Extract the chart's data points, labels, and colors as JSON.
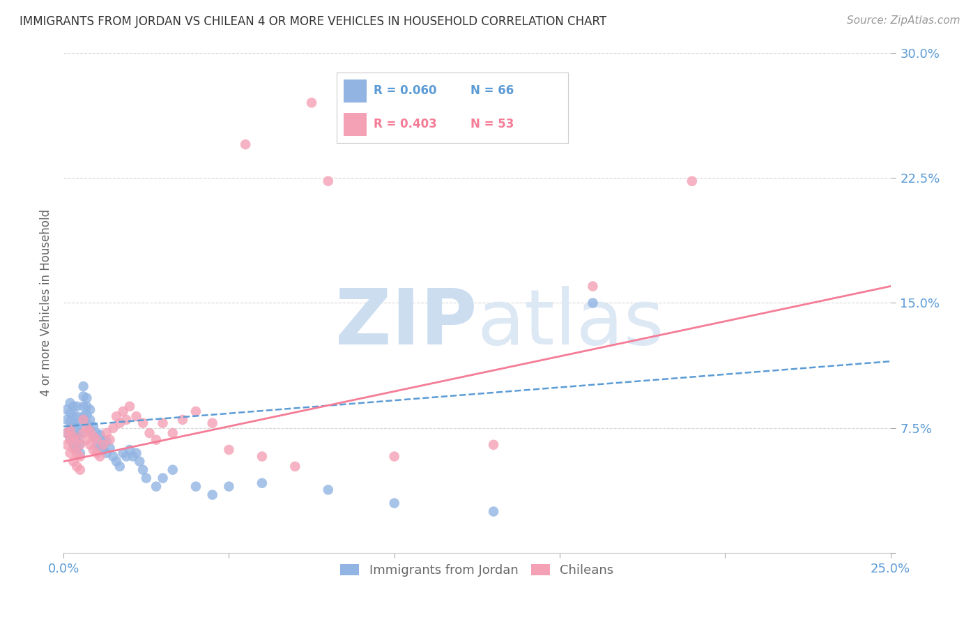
{
  "title": "IMMIGRANTS FROM JORDAN VS CHILEAN 4 OR MORE VEHICLES IN HOUSEHOLD CORRELATION CHART",
  "source": "Source: ZipAtlas.com",
  "ylabel": "4 or more Vehicles in Household",
  "xlim": [
    0.0,
    0.25
  ],
  "ylim": [
    0.0,
    0.3
  ],
  "jordan_color": "#92b4e3",
  "chilean_color": "#f4a0b5",
  "jordan_line_color": "#5b9bd5",
  "chilean_line_color": "#f47c96",
  "tick_color": "#5b9bd5",
  "background_color": "#ffffff",
  "jordan_x": [
    0.001,
    0.001,
    0.001,
    0.002,
    0.002,
    0.002,
    0.002,
    0.002,
    0.003,
    0.003,
    0.003,
    0.003,
    0.003,
    0.004,
    0.004,
    0.004,
    0.004,
    0.004,
    0.005,
    0.005,
    0.005,
    0.005,
    0.006,
    0.006,
    0.006,
    0.006,
    0.007,
    0.007,
    0.007,
    0.007,
    0.008,
    0.008,
    0.008,
    0.009,
    0.009,
    0.01,
    0.01,
    0.011,
    0.011,
    0.012,
    0.012,
    0.013,
    0.013,
    0.014,
    0.015,
    0.016,
    0.017,
    0.018,
    0.019,
    0.02,
    0.021,
    0.022,
    0.023,
    0.024,
    0.025,
    0.028,
    0.03,
    0.033,
    0.04,
    0.045,
    0.05,
    0.06,
    0.08,
    0.1,
    0.13,
    0.16
  ],
  "jordan_y": [
    0.072,
    0.08,
    0.086,
    0.068,
    0.074,
    0.079,
    0.084,
    0.09,
    0.065,
    0.071,
    0.077,
    0.082,
    0.088,
    0.063,
    0.07,
    0.076,
    0.082,
    0.088,
    0.06,
    0.066,
    0.072,
    0.078,
    0.082,
    0.088,
    0.094,
    0.1,
    0.078,
    0.083,
    0.088,
    0.093,
    0.074,
    0.08,
    0.086,
    0.07,
    0.076,
    0.065,
    0.072,
    0.064,
    0.071,
    0.062,
    0.068,
    0.06,
    0.067,
    0.063,
    0.058,
    0.055,
    0.052,
    0.06,
    0.058,
    0.062,
    0.058,
    0.06,
    0.055,
    0.05,
    0.045,
    0.04,
    0.045,
    0.05,
    0.04,
    0.035,
    0.04,
    0.042,
    0.038,
    0.03,
    0.025,
    0.15
  ],
  "chilean_x": [
    0.001,
    0.001,
    0.002,
    0.002,
    0.002,
    0.003,
    0.003,
    0.003,
    0.004,
    0.004,
    0.004,
    0.005,
    0.005,
    0.005,
    0.006,
    0.006,
    0.007,
    0.007,
    0.008,
    0.008,
    0.009,
    0.009,
    0.01,
    0.01,
    0.011,
    0.012,
    0.013,
    0.014,
    0.015,
    0.016,
    0.017,
    0.018,
    0.019,
    0.02,
    0.022,
    0.024,
    0.026,
    0.028,
    0.03,
    0.033,
    0.036,
    0.04,
    0.045,
    0.05,
    0.06,
    0.07,
    0.08,
    0.1,
    0.13,
    0.16,
    0.19,
    0.055,
    0.075
  ],
  "chilean_y": [
    0.065,
    0.072,
    0.06,
    0.068,
    0.074,
    0.055,
    0.063,
    0.07,
    0.052,
    0.06,
    0.068,
    0.05,
    0.058,
    0.065,
    0.072,
    0.08,
    0.068,
    0.075,
    0.065,
    0.073,
    0.062,
    0.07,
    0.06,
    0.068,
    0.058,
    0.065,
    0.072,
    0.068,
    0.075,
    0.082,
    0.078,
    0.085,
    0.08,
    0.088,
    0.082,
    0.078,
    0.072,
    0.068,
    0.078,
    0.072,
    0.08,
    0.085,
    0.078,
    0.062,
    0.058,
    0.052,
    0.223,
    0.058,
    0.065,
    0.16,
    0.223,
    0.245,
    0.27
  ],
  "jordan_line_x": [
    0.0,
    0.25
  ],
  "jordan_line_y": [
    0.076,
    0.115
  ],
  "chilean_line_x": [
    0.0,
    0.25
  ],
  "chilean_line_y": [
    0.055,
    0.16
  ]
}
